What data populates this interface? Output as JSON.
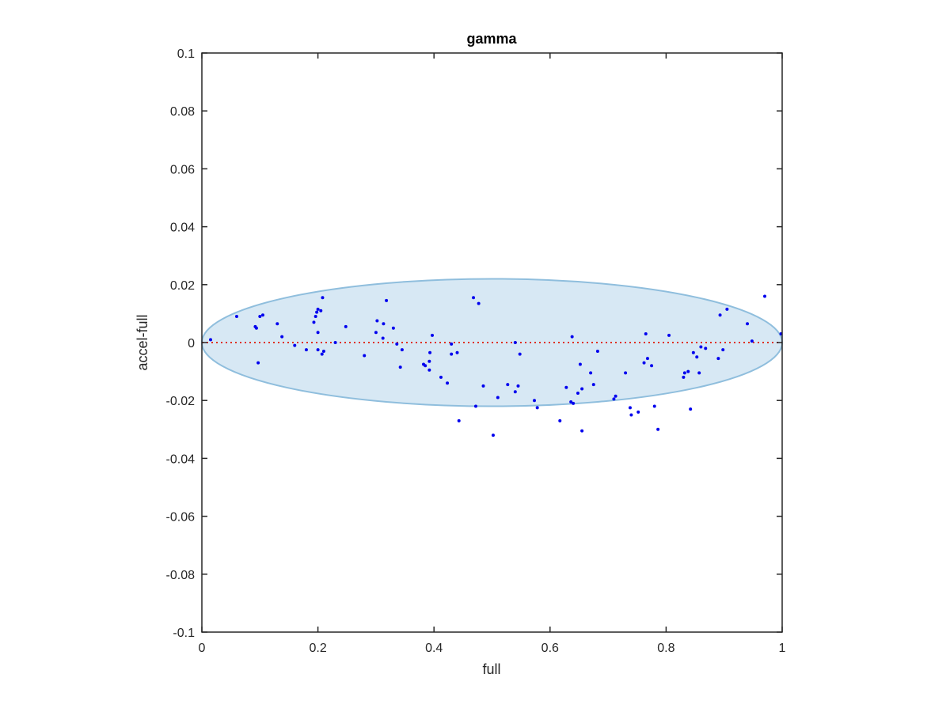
{
  "chart_data": {
    "type": "scatter",
    "title": "gamma",
    "xlabel": "full",
    "ylabel": "accel-full",
    "xlim": [
      0,
      1
    ],
    "ylim": [
      -0.1,
      0.1
    ],
    "xticks": [
      "0",
      "0.2",
      "0.4",
      "0.6",
      "0.8",
      "1"
    ],
    "yticks": [
      "-0.1",
      "-0.08",
      "-0.06",
      "-0.04",
      "-0.02",
      "0",
      "0.02",
      "0.04",
      "0.06",
      "0.08",
      "0.1"
    ],
    "grid": false,
    "reference_line": {
      "y": 0,
      "style": "dotted",
      "color": "#e0301e"
    },
    "ellipse": {
      "center_x": 0.5,
      "center_y": 0,
      "semi_x": 0.5,
      "semi_y": 0.022,
      "fill": "#d7e8f4",
      "stroke": "#8fbedd"
    },
    "point_color": "#0000ee",
    "points": [
      [
        0.015,
        0.001
      ],
      [
        0.06,
        0.009
      ],
      [
        0.092,
        0.0055
      ],
      [
        0.094,
        0.005
      ],
      [
        0.097,
        -0.007
      ],
      [
        0.1,
        0.009
      ],
      [
        0.105,
        0.0095
      ],
      [
        0.13,
        0.0065
      ],
      [
        0.138,
        0.002
      ],
      [
        0.16,
        -0.001
      ],
      [
        0.18,
        -0.0025
      ],
      [
        0.193,
        0.007
      ],
      [
        0.196,
        0.009
      ],
      [
        0.198,
        0.0105
      ],
      [
        0.2,
        0.0035
      ],
      [
        0.2,
        0.0115
      ],
      [
        0.205,
        0.011
      ],
      [
        0.2,
        -0.0025
      ],
      [
        0.208,
        0.0155
      ],
      [
        0.207,
        -0.004
      ],
      [
        0.21,
        -0.003
      ],
      [
        0.23,
        0.0
      ],
      [
        0.248,
        0.0055
      ],
      [
        0.28,
        -0.0045
      ],
      [
        0.3,
        0.0035
      ],
      [
        0.302,
        0.0075
      ],
      [
        0.312,
        0.0015
      ],
      [
        0.313,
        0.0065
      ],
      [
        0.318,
        0.0145
      ],
      [
        0.33,
        0.005
      ],
      [
        0.336,
        -0.0005
      ],
      [
        0.342,
        -0.0085
      ],
      [
        0.345,
        -0.0025
      ],
      [
        0.382,
        -0.0075
      ],
      [
        0.385,
        -0.008
      ],
      [
        0.392,
        -0.0065
      ],
      [
        0.392,
        -0.0095
      ],
      [
        0.393,
        -0.0035
      ],
      [
        0.397,
        0.0025
      ],
      [
        0.412,
        -0.012
      ],
      [
        0.423,
        -0.014
      ],
      [
        0.43,
        -0.004
      ],
      [
        0.43,
        -0.0005
      ],
      [
        0.44,
        -0.0035
      ],
      [
        0.443,
        -0.027
      ],
      [
        0.468,
        0.0155
      ],
      [
        0.472,
        -0.022
      ],
      [
        0.477,
        0.0135
      ],
      [
        0.485,
        -0.015
      ],
      [
        0.502,
        -0.032
      ],
      [
        0.51,
        -0.019
      ],
      [
        0.527,
        -0.0145
      ],
      [
        0.54,
        -0.017
      ],
      [
        0.54,
        0.0
      ],
      [
        0.545,
        -0.015
      ],
      [
        0.548,
        -0.004
      ],
      [
        0.573,
        -0.02
      ],
      [
        0.578,
        -0.0225
      ],
      [
        0.617,
        -0.027
      ],
      [
        0.628,
        -0.0155
      ],
      [
        0.636,
        -0.0205
      ],
      [
        0.638,
        0.002
      ],
      [
        0.64,
        -0.021
      ],
      [
        0.648,
        -0.0175
      ],
      [
        0.652,
        -0.0075
      ],
      [
        0.655,
        -0.016
      ],
      [
        0.655,
        -0.0305
      ],
      [
        0.67,
        -0.0105
      ],
      [
        0.675,
        -0.0145
      ],
      [
        0.682,
        -0.003
      ],
      [
        0.71,
        -0.0195
      ],
      [
        0.713,
        -0.0185
      ],
      [
        0.73,
        -0.0105
      ],
      [
        0.738,
        -0.0225
      ],
      [
        0.74,
        -0.025
      ],
      [
        0.752,
        -0.024
      ],
      [
        0.762,
        -0.007
      ],
      [
        0.765,
        0.003
      ],
      [
        0.768,
        -0.0055
      ],
      [
        0.775,
        -0.008
      ],
      [
        0.78,
        -0.022
      ],
      [
        0.786,
        -0.03
      ],
      [
        0.805,
        0.0025
      ],
      [
        0.83,
        -0.012
      ],
      [
        0.832,
        -0.0105
      ],
      [
        0.838,
        -0.01
      ],
      [
        0.842,
        -0.023
      ],
      [
        0.847,
        -0.0035
      ],
      [
        0.853,
        -0.005
      ],
      [
        0.857,
        -0.0105
      ],
      [
        0.86,
        -0.0015
      ],
      [
        0.868,
        -0.002
      ],
      [
        0.89,
        -0.0055
      ],
      [
        0.893,
        0.0095
      ],
      [
        0.898,
        -0.0025
      ],
      [
        0.905,
        0.0115
      ],
      [
        0.94,
        0.0065
      ],
      [
        0.948,
        0.0005
      ],
      [
        0.97,
        0.016
      ],
      [
        0.998,
        0.003
      ]
    ]
  }
}
